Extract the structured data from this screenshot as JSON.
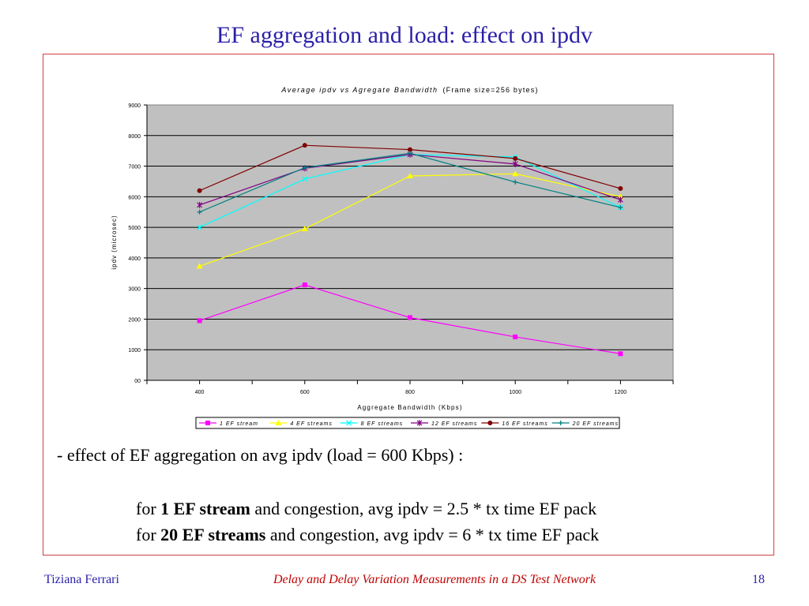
{
  "slide": {
    "title": "EF aggregation and load: effect on ipdv",
    "bullet": "- effect of EF aggregation on avg ipdv (load = 600 Kbps) :",
    "line1": {
      "pre": "for ",
      "bold": "1 EF stream",
      "post": " and congestion, avg ipdv = 2.5 * tx time EF pack"
    },
    "line2": {
      "pre": "for ",
      "bold": "20 EF streams",
      "post": " and congestion, avg ipdv = 6 * tx time EF pack"
    }
  },
  "footer": {
    "author": "Tiziana Ferrari",
    "center": "Delay and Delay Variation Measurements in a DS Test Network",
    "page": "18"
  },
  "chart_data": {
    "type": "line",
    "title": "Average ipdv vs Agregate Bandwidth",
    "subtitle": "(Frame size=256 bytes)",
    "xlabel": "Aggregate Bandwidth (Kbps)",
    "ylabel": "ipdv (microsec)",
    "xlim": [
      300,
      1300
    ],
    "ylim": [
      0,
      9000
    ],
    "x_ticks": [
      400,
      600,
      800,
      1000,
      1200
    ],
    "y_ticks": [
      0,
      1000,
      2000,
      3000,
      4000,
      5000,
      6000,
      7000,
      8000,
      9000
    ],
    "y_tick_labels": [
      "00",
      "1000",
      "2000",
      "3000",
      "4000",
      "5000",
      "6000",
      "7000",
      "8000",
      "9000"
    ],
    "grid": "horizontal",
    "legend_position": "bottom",
    "plot_background": "#c0c0c0",
    "x": [
      400,
      600,
      800,
      1000,
      1200
    ],
    "series": [
      {
        "name": "1 EF stream",
        "color": "#ff00ff",
        "marker": "square",
        "values": [
          1950,
          3120,
          2050,
          1420,
          870
        ]
      },
      {
        "name": "4 EF streams",
        "color": "#ffff00",
        "marker": "triangle",
        "values": [
          3730,
          4950,
          6680,
          6750,
          6000
        ]
      },
      {
        "name": "8 EF streams",
        "color": "#00ffff",
        "marker": "x",
        "values": [
          5000,
          6580,
          7380,
          7300,
          5650
        ]
      },
      {
        "name": "12 EF streams",
        "color": "#800080",
        "marker": "star",
        "values": [
          5730,
          6930,
          7380,
          7070,
          5900
        ]
      },
      {
        "name": "16 EF streams",
        "color": "#800000",
        "marker": "circle",
        "values": [
          6200,
          7680,
          7540,
          7250,
          6270
        ]
      },
      {
        "name": "20 EF streams",
        "color": "#008080",
        "marker": "plus",
        "values": [
          5500,
          6950,
          7420,
          6480,
          5650
        ]
      }
    ]
  }
}
